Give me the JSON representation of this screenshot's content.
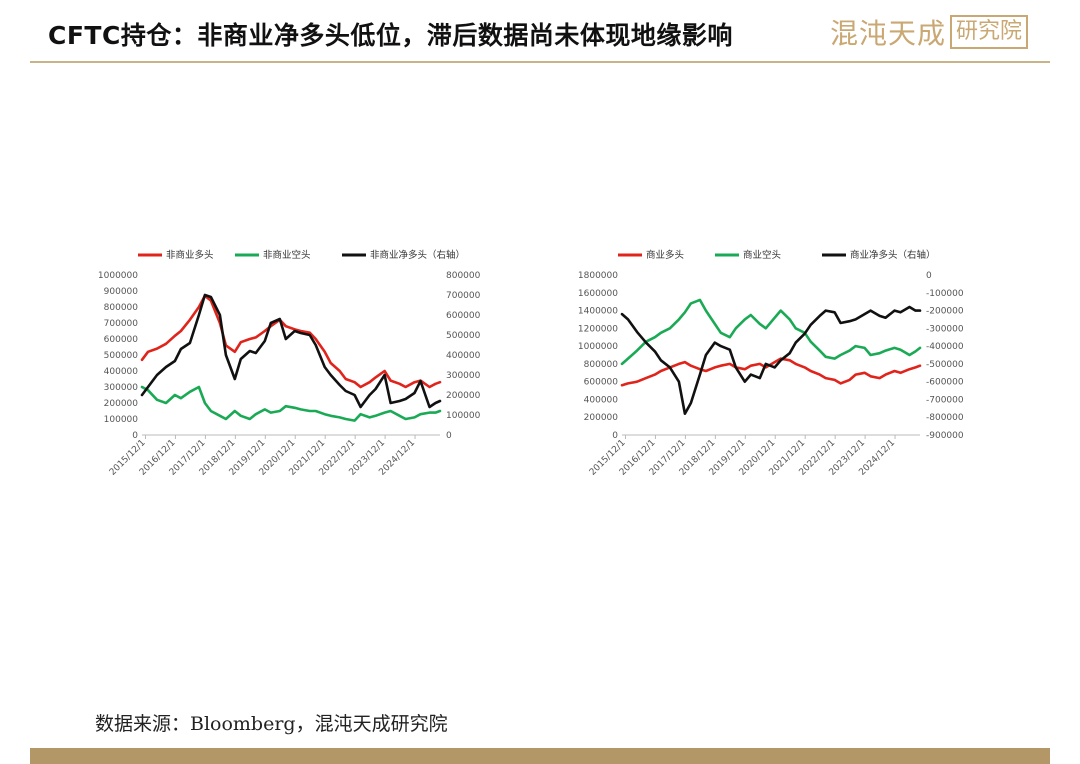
{
  "header": {
    "title": "CFTC持仓：非商业净多头低位，滞后数据尚未体现地缘影响",
    "logo_main": "混沌天成",
    "logo_box": "研究院"
  },
  "footer": {
    "source": "数据来源：Bloomberg，混沌天成研究院"
  },
  "colors": {
    "long": "#e0241b",
    "short": "#1aaa55",
    "net": "#111111",
    "accent": "#b49767"
  },
  "chart_data": [
    {
      "type": "line",
      "x_ticks": [
        "2015/12/1",
        "2016/12/1",
        "2017/12/1",
        "2018/12/1",
        "2019/12/1",
        "2020/12/1",
        "2021/12/1",
        "2022/12/1",
        "2023/12/1",
        "2024/12/1"
      ],
      "x_range": [
        2015.8,
        2025.75
      ],
      "ylim_left": [
        0,
        1000000
      ],
      "ylim_right": [
        0,
        800000
      ],
      "y_ticks_left": [
        "0",
        "100000",
        "200000",
        "300000",
        "400000",
        "500000",
        "600000",
        "700000",
        "800000",
        "900000",
        "1000000"
      ],
      "y_ticks_right": [
        "0",
        "100000",
        "200000",
        "300000",
        "400000",
        "500000",
        "600000",
        "700000",
        "800000"
      ],
      "legend_position": "top",
      "series": [
        {
          "name": "非商业多头",
          "axis": "left",
          "color": "#e0241b",
          "x": [
            2015.8,
            2016.0,
            2016.3,
            2016.6,
            2016.9,
            2017.1,
            2017.4,
            2017.7,
            2017.9,
            2018.1,
            2018.4,
            2018.6,
            2018.9,
            2019.1,
            2019.4,
            2019.6,
            2019.9,
            2020.1,
            2020.4,
            2020.6,
            2020.9,
            2021.1,
            2021.4,
            2021.6,
            2021.9,
            2022.1,
            2022.4,
            2022.6,
            2022.9,
            2023.1,
            2023.4,
            2023.6,
            2023.9,
            2024.1,
            2024.4,
            2024.6,
            2024.9,
            2025.1,
            2025.4,
            2025.6,
            2025.75
          ],
          "values": [
            470000,
            520000,
            540000,
            570000,
            620000,
            650000,
            720000,
            800000,
            870000,
            840000,
            700000,
            560000,
            520000,
            580000,
            600000,
            610000,
            650000,
            680000,
            720000,
            680000,
            660000,
            650000,
            640000,
            600000,
            520000,
            450000,
            400000,
            350000,
            330000,
            300000,
            330000,
            360000,
            400000,
            340000,
            320000,
            300000,
            330000,
            340000,
            300000,
            320000,
            330000
          ]
        },
        {
          "name": "非商业空头",
          "axis": "left",
          "color": "#1aaa55",
          "x": [
            2015.8,
            2016.0,
            2016.3,
            2016.6,
            2016.9,
            2017.1,
            2017.4,
            2017.7,
            2017.9,
            2018.1,
            2018.4,
            2018.6,
            2018.9,
            2019.1,
            2019.4,
            2019.6,
            2019.9,
            2020.1,
            2020.4,
            2020.6,
            2020.9,
            2021.1,
            2021.4,
            2021.6,
            2021.9,
            2022.1,
            2022.4,
            2022.6,
            2022.9,
            2023.1,
            2023.4,
            2023.6,
            2023.9,
            2024.1,
            2024.4,
            2024.6,
            2024.9,
            2025.1,
            2025.4,
            2025.6,
            2025.75
          ],
          "values": [
            300000,
            280000,
            220000,
            200000,
            250000,
            230000,
            270000,
            300000,
            200000,
            150000,
            120000,
            100000,
            150000,
            120000,
            100000,
            130000,
            160000,
            140000,
            150000,
            180000,
            170000,
            160000,
            150000,
            150000,
            130000,
            120000,
            110000,
            100000,
            90000,
            130000,
            110000,
            120000,
            140000,
            150000,
            120000,
            100000,
            110000,
            130000,
            140000,
            140000,
            150000
          ]
        },
        {
          "name": "非商业净多头（右轴）",
          "axis": "right",
          "color": "#111111",
          "x": [
            2015.8,
            2016.0,
            2016.3,
            2016.6,
            2016.9,
            2017.1,
            2017.4,
            2017.7,
            2017.9,
            2018.1,
            2018.4,
            2018.6,
            2018.9,
            2019.1,
            2019.4,
            2019.6,
            2019.9,
            2020.1,
            2020.4,
            2020.6,
            2020.9,
            2021.1,
            2021.4,
            2021.6,
            2021.9,
            2022.1,
            2022.4,
            2022.6,
            2022.9,
            2023.1,
            2023.4,
            2023.6,
            2023.9,
            2024.1,
            2024.4,
            2024.6,
            2024.9,
            2025.1,
            2025.4,
            2025.6,
            2025.75
          ],
          "values": [
            200000,
            240000,
            300000,
            340000,
            370000,
            430000,
            460000,
            600000,
            700000,
            690000,
            600000,
            400000,
            280000,
            380000,
            420000,
            410000,
            470000,
            560000,
            580000,
            480000,
            520000,
            510000,
            500000,
            450000,
            340000,
            300000,
            250000,
            220000,
            200000,
            140000,
            200000,
            230000,
            300000,
            160000,
            170000,
            180000,
            210000,
            270000,
            140000,
            160000,
            170000
          ]
        }
      ]
    },
    {
      "type": "line",
      "x_ticks": [
        "2015/12/1",
        "2016/12/1",
        "2017/12/1",
        "2018/12/1",
        "2019/12/1",
        "2020/12/1",
        "2021/12/1",
        "2022/12/1",
        "2023/12/1",
        "2024/12/1"
      ],
      "x_range": [
        2015.8,
        2025.75
      ],
      "ylim_left": [
        0,
        1800000
      ],
      "ylim_right": [
        -900000,
        0
      ],
      "y_ticks_left": [
        "0",
        "200000",
        "400000",
        "600000",
        "800000",
        "1000000",
        "1200000",
        "1400000",
        "1600000",
        "1800000"
      ],
      "y_ticks_right": [
        "-900000",
        "-800000",
        "-700000",
        "-600000",
        "-500000",
        "-400000",
        "-300000",
        "-200000",
        "-100000",
        "0"
      ],
      "legend_position": "top",
      "series": [
        {
          "name": "商业多头",
          "axis": "left",
          "color": "#e0241b",
          "x": [
            2015.8,
            2016.0,
            2016.3,
            2016.6,
            2016.9,
            2017.1,
            2017.4,
            2017.7,
            2017.9,
            2018.1,
            2018.4,
            2018.6,
            2018.9,
            2019.1,
            2019.4,
            2019.6,
            2019.9,
            2020.1,
            2020.4,
            2020.6,
            2020.9,
            2021.1,
            2021.4,
            2021.6,
            2021.9,
            2022.1,
            2022.4,
            2022.6,
            2022.9,
            2023.1,
            2023.4,
            2023.6,
            2023.9,
            2024.1,
            2024.4,
            2024.6,
            2024.9,
            2025.1,
            2025.4,
            2025.6,
            2025.75
          ],
          "values": [
            560000,
            580000,
            600000,
            640000,
            680000,
            720000,
            760000,
            800000,
            820000,
            780000,
            740000,
            720000,
            760000,
            780000,
            800000,
            760000,
            740000,
            780000,
            800000,
            760000,
            820000,
            860000,
            840000,
            800000,
            760000,
            720000,
            680000,
            640000,
            620000,
            580000,
            620000,
            680000,
            700000,
            660000,
            640000,
            680000,
            720000,
            700000,
            740000,
            760000,
            780000
          ]
        },
        {
          "name": "商业空头",
          "axis": "left",
          "color": "#1aaa55",
          "x": [
            2015.8,
            2016.0,
            2016.3,
            2016.6,
            2016.9,
            2017.1,
            2017.4,
            2017.7,
            2017.9,
            2018.1,
            2018.4,
            2018.6,
            2018.9,
            2019.1,
            2019.4,
            2019.6,
            2019.9,
            2020.1,
            2020.4,
            2020.6,
            2020.9,
            2021.1,
            2021.4,
            2021.6,
            2021.9,
            2022.1,
            2022.4,
            2022.6,
            2022.9,
            2023.1,
            2023.4,
            2023.6,
            2023.9,
            2024.1,
            2024.4,
            2024.6,
            2024.9,
            2025.1,
            2025.4,
            2025.6,
            2025.75
          ],
          "values": [
            800000,
            860000,
            950000,
            1050000,
            1100000,
            1150000,
            1200000,
            1300000,
            1380000,
            1480000,
            1520000,
            1400000,
            1250000,
            1150000,
            1100000,
            1200000,
            1300000,
            1350000,
            1250000,
            1200000,
            1320000,
            1400000,
            1300000,
            1200000,
            1150000,
            1050000,
            950000,
            880000,
            860000,
            900000,
            950000,
            1000000,
            980000,
            900000,
            920000,
            950000,
            980000,
            960000,
            900000,
            940000,
            980000
          ]
        },
        {
          "name": "商业净多头（右轴）",
          "axis": "right",
          "color": "#111111",
          "x": [
            2015.8,
            2016.0,
            2016.3,
            2016.6,
            2016.9,
            2017.1,
            2017.4,
            2017.7,
            2017.9,
            2018.1,
            2018.4,
            2018.6,
            2018.9,
            2019.1,
            2019.4,
            2019.6,
            2019.9,
            2020.1,
            2020.4,
            2020.6,
            2020.9,
            2021.1,
            2021.4,
            2021.6,
            2021.9,
            2022.1,
            2022.4,
            2022.6,
            2022.9,
            2023.1,
            2023.4,
            2023.6,
            2023.9,
            2024.1,
            2024.4,
            2024.6,
            2024.9,
            2025.1,
            2025.4,
            2025.6,
            2025.75
          ],
          "values": [
            -220000,
            -250000,
            -320000,
            -380000,
            -430000,
            -480000,
            -520000,
            -600000,
            -780000,
            -720000,
            -560000,
            -450000,
            -380000,
            -400000,
            -420000,
            -520000,
            -600000,
            -560000,
            -580000,
            -500000,
            -520000,
            -480000,
            -440000,
            -380000,
            -330000,
            -280000,
            -230000,
            -200000,
            -210000,
            -270000,
            -260000,
            -250000,
            -220000,
            -200000,
            -230000,
            -240000,
            -200000,
            -210000,
            -180000,
            -200000,
            -200000
          ]
        }
      ]
    }
  ]
}
